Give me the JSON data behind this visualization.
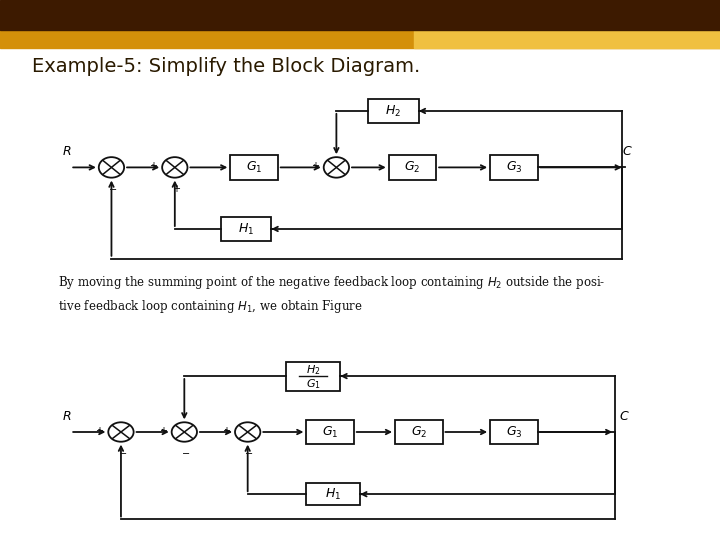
{
  "title": "Example-5: Simplify the Block Diagram.",
  "title_color": "#2a1a00",
  "title_fontsize": 14,
  "bg_color": "#ffffff",
  "header_bar1_color": "#3d1a00",
  "header_bar2_color": "#d4900a",
  "header_bar3_color": "#f0c040",
  "diagram_line_color": "#111111",
  "description_text": "By moving the summing point of the negative feedback loop containing $H_2$ outside the posi-\ntive feedback loop containing $H_1$, we obtain Figure",
  "description_fontsize": 8.5
}
